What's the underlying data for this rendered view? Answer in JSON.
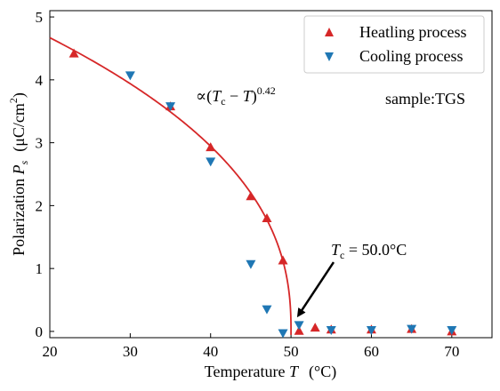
{
  "chart_data": {
    "type": "scatter",
    "xlabel": "Temperature T (°C)",
    "ylabel": "Polarization Ps (μC/cm²)",
    "xlim": [
      20,
      75
    ],
    "ylim": [
      -0.1,
      5.1
    ],
    "xticks": [
      20,
      30,
      40,
      50,
      60,
      70
    ],
    "yticks": [
      0,
      1,
      2,
      3,
      4,
      5
    ],
    "grid": false,
    "legend_position": "top-right",
    "series": [
      {
        "name": "Heatling process",
        "marker": "triangle-up",
        "color": "#d62728",
        "x": [
          23,
          35,
          40,
          45,
          47,
          49,
          51,
          53,
          55,
          60,
          65,
          70
        ],
        "y": [
          4.42,
          3.58,
          2.93,
          2.15,
          1.8,
          1.13,
          0.01,
          0.06,
          0.03,
          0.03,
          0.04,
          0.0
        ]
      },
      {
        "name": "Cooling process",
        "marker": "triangle-down",
        "color": "#1f77b4",
        "x": [
          30,
          35,
          40,
          45,
          47,
          49,
          51,
          55,
          60,
          65,
          70
        ],
        "y": [
          4.07,
          3.58,
          2.7,
          1.07,
          0.35,
          -0.03,
          0.1,
          0.02,
          0.02,
          0.04,
          0.02
        ]
      }
    ],
    "fit": {
      "color": "#d62728",
      "amplitude": 4.67,
      "Tc": 50.0,
      "exponent": 0.42,
      "x_start": 20
    },
    "annotations": {
      "fit_label_prefix": "∝(",
      "fit_label_T": "T",
      "fit_label_c": "c",
      "fit_label_minus": " − ",
      "fit_label_close": ")",
      "fit_label_exp": "0.42",
      "sample_label": "sample:TGS",
      "tc_label_T": "T",
      "tc_label_c": "c",
      "tc_label_value": " = 50.0°C"
    },
    "arrow": {
      "from": [
        55.3,
        1.1
      ],
      "to": [
        51.0,
        0.27
      ]
    }
  },
  "axis_text": {
    "x_prefix": "Temperature ",
    "x_var": "T",
    "x_unit": "(°C)",
    "y_prefix": "Polarization ",
    "y_var": "P",
    "y_sub": "s",
    "y_unit_open": "(μC/cm",
    "y_unit_sup": "2",
    "y_unit_close": ")"
  }
}
